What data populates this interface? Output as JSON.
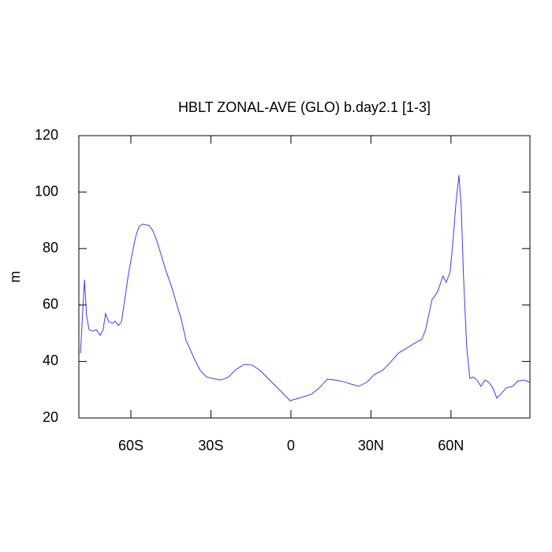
{
  "chart_data": {
    "type": "line",
    "title": "HBLT ZONAL-AVE (GLO) b.day2.1 [1-3]",
    "y_label": "m",
    "color": "#3b3bff",
    "x": [
      -78.9,
      -77.4,
      -76.6,
      -75.7,
      -74.2,
      -73.0,
      -71.5,
      -70.4,
      -69.5,
      -68.3,
      -66.8,
      -65.9,
      -64.7,
      -63.5,
      -62.3,
      -60.8,
      -59.3,
      -58.2,
      -57.0,
      -55.6,
      -54.4,
      -53.2,
      -51.7,
      -50.3,
      -48.5,
      -46.7,
      -44.6,
      -42.9,
      -41.1,
      -39.3,
      -37.5,
      -35.8,
      -34.0,
      -31.6,
      -29.3,
      -26.3,
      -23.4,
      -20.4,
      -17.4,
      -14.5,
      -11.5,
      -8.6,
      -5.6,
      -2.7,
      -0.3,
      1.8,
      4.7,
      7.7,
      10.6,
      13.6,
      16.6,
      19.5,
      22.5,
      25.4,
      28.4,
      31.3,
      34.3,
      37.2,
      40.2,
      43.2,
      46.1,
      49.1,
      50.5,
      52.9,
      55.0,
      57.0,
      58.2,
      59.7,
      60.9,
      61.8,
      63.0,
      63.8,
      64.7,
      65.9,
      67.1,
      68.3,
      69.8,
      71.2,
      72.7,
      74.2,
      75.7,
      77.2,
      78.6,
      80.7,
      83.1,
      85.1,
      87.5,
      89.6
    ],
    "values": [
      42.9,
      68.9,
      56.3,
      51.3,
      50.7,
      51.3,
      49.3,
      51.3,
      56.9,
      54.1,
      53.5,
      54.3,
      52.7,
      54.1,
      61.9,
      71.7,
      79.2,
      84.2,
      87.6,
      88.7,
      88.4,
      88.2,
      86.2,
      82.8,
      77.3,
      71.7,
      66.1,
      60.5,
      54.9,
      47.4,
      43.7,
      40.1,
      36.8,
      34.5,
      34.0,
      33.4,
      34.5,
      37.3,
      39.0,
      38.7,
      36.8,
      34.0,
      31.2,
      28.4,
      26.1,
      26.7,
      27.5,
      28.4,
      30.6,
      33.7,
      33.4,
      32.9,
      32.0,
      31.2,
      32.6,
      35.4,
      36.8,
      39.6,
      42.9,
      44.6,
      46.3,
      47.9,
      51.3,
      61.9,
      64.7,
      70.3,
      68.0,
      71.7,
      84.2,
      95.4,
      106.0,
      95.4,
      70.3,
      45.1,
      34.0,
      34.5,
      33.4,
      31.2,
      33.4,
      32.6,
      30.6,
      27.0,
      28.4,
      30.6,
      31.2,
      33.1,
      33.4,
      32.6
    ],
    "xlim": [
      -79.5,
      89.6
    ],
    "ylim": [
      20,
      120
    ],
    "xticks": [
      {
        "value": -60,
        "label": "60S"
      },
      {
        "value": -30,
        "label": "30S"
      },
      0,
      {
        "value": 30,
        "label": "30N"
      },
      {
        "value": 60,
        "label": "60N"
      }
    ],
    "yticks": [
      20,
      40,
      60,
      80,
      100,
      120
    ]
  }
}
